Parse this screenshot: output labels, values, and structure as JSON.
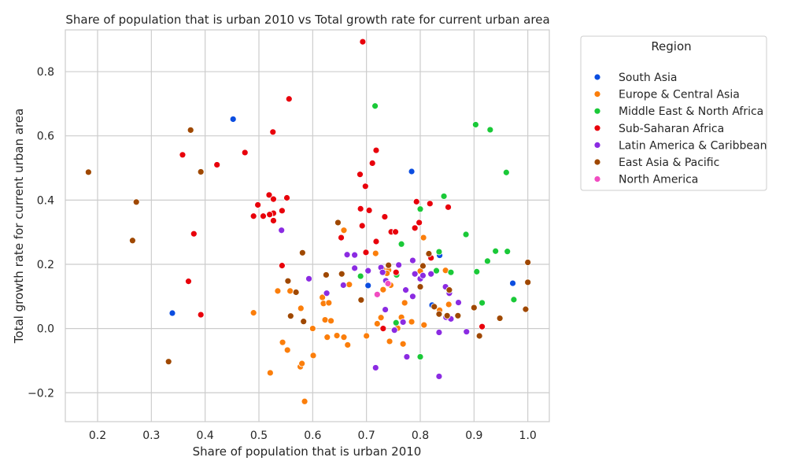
{
  "chart_data": {
    "type": "scatter",
    "title": "Share of population that is urban 2010 vs Total growth rate for current urban area",
    "xlabel": "Share of population that is urban 2010",
    "ylabel": "Total growth rate for current urban area",
    "xlim": [
      0.14,
      1.04
    ],
    "ylim": [
      -0.29,
      0.93
    ],
    "xticks": [
      0.2,
      0.3,
      0.4,
      0.5,
      0.6,
      0.7,
      0.8,
      0.9,
      1.0
    ],
    "xtick_labels": [
      "0.2",
      "0.3",
      "0.4",
      "0.5",
      "0.6",
      "0.7",
      "0.8",
      "0.9",
      "1.0"
    ],
    "yticks": [
      -0.2,
      0.0,
      0.2,
      0.4,
      0.6,
      0.8
    ],
    "ytick_labels": [
      "−0.2",
      "0.0",
      "0.2",
      "0.4",
      "0.6",
      "0.8"
    ],
    "grid": true,
    "legend": {
      "title": "Region",
      "placement": "outside-right"
    },
    "series": [
      {
        "name": "South Asia",
        "color": "#0b4de0",
        "points": [
          [
            0.452,
            0.652
          ],
          [
            0.339,
            0.048
          ],
          [
            0.784,
            0.489
          ],
          [
            0.703,
            0.134
          ],
          [
            0.836,
            0.228
          ],
          [
            0.805,
            0.166
          ],
          [
            0.822,
            0.073
          ],
          [
            0.972,
            0.141
          ]
        ]
      },
      {
        "name": "Europe & Central Asia",
        "color": "#fb7e0b",
        "points": [
          [
            0.49,
            0.049
          ],
          [
            0.521,
            -0.138
          ],
          [
            0.535,
            0.117
          ],
          [
            0.544,
            -0.043
          ],
          [
            0.553,
            -0.067
          ],
          [
            0.558,
            0.117
          ],
          [
            0.577,
            -0.119
          ],
          [
            0.58,
            -0.109
          ],
          [
            0.585,
            -0.227
          ],
          [
            0.578,
            0.063
          ],
          [
            0.6,
            0.0
          ],
          [
            0.601,
            -0.084
          ],
          [
            0.618,
            0.097
          ],
          [
            0.62,
            0.078
          ],
          [
            0.623,
            0.027
          ],
          [
            0.627,
            -0.027
          ],
          [
            0.63,
            0.08
          ],
          [
            0.634,
            0.024
          ],
          [
            0.645,
            -0.022
          ],
          [
            0.658,
            -0.027
          ],
          [
            0.665,
            -0.051
          ],
          [
            0.668,
            0.137
          ],
          [
            0.658,
            0.306
          ],
          [
            0.7,
            -0.023
          ],
          [
            0.717,
            0.234
          ],
          [
            0.72,
            0.015
          ],
          [
            0.727,
            0.034
          ],
          [
            0.731,
            0.121
          ],
          [
            0.741,
            0.182
          ],
          [
            0.743,
            -0.04
          ],
          [
            0.745,
            0.135
          ],
          [
            0.758,
            0.001
          ],
          [
            0.765,
            0.035
          ],
          [
            0.768,
            -0.048
          ],
          [
            0.771,
            0.08
          ],
          [
            0.784,
            0.021
          ],
          [
            0.8,
            0.179
          ],
          [
            0.806,
            0.283
          ],
          [
            0.807,
            0.011
          ],
          [
            0.836,
            0.057
          ],
          [
            0.847,
            0.181
          ],
          [
            0.853,
            0.075
          ],
          [
            0.73,
            0.185
          ],
          [
            0.738,
            0.172
          ]
        ]
      },
      {
        "name": "Middle East & North Africa",
        "color": "#1ac938",
        "points": [
          [
            0.716,
            0.693
          ],
          [
            0.903,
            0.635
          ],
          [
            0.93,
            0.619
          ],
          [
            0.96,
            0.486
          ],
          [
            0.844,
            0.412
          ],
          [
            0.8,
            0.372
          ],
          [
            0.885,
            0.293
          ],
          [
            0.765,
            0.263
          ],
          [
            0.835,
            0.239
          ],
          [
            0.94,
            0.241
          ],
          [
            0.962,
            0.24
          ],
          [
            0.925,
            0.21
          ],
          [
            0.83,
            0.18
          ],
          [
            0.857,
            0.175
          ],
          [
            0.905,
            0.177
          ],
          [
            0.689,
            0.163
          ],
          [
            0.756,
            0.167
          ],
          [
            0.974,
            0.09
          ],
          [
            0.915,
            0.08
          ],
          [
            0.755,
            0.018
          ],
          [
            0.8,
            -0.088
          ]
        ]
      },
      {
        "name": "Sub-Saharan Africa",
        "color": "#e8000b",
        "points": [
          [
            0.693,
            0.893
          ],
          [
            0.556,
            0.715
          ],
          [
            0.526,
            0.612
          ],
          [
            0.358,
            0.541
          ],
          [
            0.474,
            0.548
          ],
          [
            0.422,
            0.51
          ],
          [
            0.718,
            0.555
          ],
          [
            0.711,
            0.515
          ],
          [
            0.688,
            0.48
          ],
          [
            0.698,
            0.443
          ],
          [
            0.519,
            0.416
          ],
          [
            0.552,
            0.407
          ],
          [
            0.527,
            0.403
          ],
          [
            0.793,
            0.395
          ],
          [
            0.818,
            0.389
          ],
          [
            0.852,
            0.378
          ],
          [
            0.498,
            0.385
          ],
          [
            0.543,
            0.367
          ],
          [
            0.705,
            0.368
          ],
          [
            0.689,
            0.373
          ],
          [
            0.527,
            0.359
          ],
          [
            0.52,
            0.355
          ],
          [
            0.49,
            0.35
          ],
          [
            0.508,
            0.35
          ],
          [
            0.734,
            0.348
          ],
          [
            0.527,
            0.336
          ],
          [
            0.798,
            0.33
          ],
          [
            0.692,
            0.32
          ],
          [
            0.79,
            0.313
          ],
          [
            0.746,
            0.301
          ],
          [
            0.754,
            0.301
          ],
          [
            0.379,
            0.295
          ],
          [
            0.653,
            0.283
          ],
          [
            0.718,
            0.271
          ],
          [
            0.699,
            0.237
          ],
          [
            0.82,
            0.22
          ],
          [
            0.543,
            0.196
          ],
          [
            0.755,
            0.175
          ],
          [
            0.369,
            0.147
          ],
          [
            0.392,
            0.043
          ],
          [
            0.915,
            0.006
          ],
          [
            0.731,
            0.0
          ]
        ]
      },
      {
        "name": "Latin America & Caribbean",
        "color": "#8b2be2",
        "points": [
          [
            0.542,
            0.306
          ],
          [
            0.664,
            0.23
          ],
          [
            0.678,
            0.229
          ],
          [
            0.703,
            0.18
          ],
          [
            0.678,
            0.188
          ],
          [
            0.727,
            0.19
          ],
          [
            0.76,
            0.198
          ],
          [
            0.73,
            0.175
          ],
          [
            0.736,
            0.149
          ],
          [
            0.79,
            0.17
          ],
          [
            0.786,
            0.212
          ],
          [
            0.8,
            0.155
          ],
          [
            0.82,
            0.17
          ],
          [
            0.593,
            0.155
          ],
          [
            0.657,
            0.135
          ],
          [
            0.626,
            0.11
          ],
          [
            0.735,
            0.059
          ],
          [
            0.773,
            0.12
          ],
          [
            0.786,
            0.1
          ],
          [
            0.805,
            0.165
          ],
          [
            0.847,
            0.13
          ],
          [
            0.854,
            0.11
          ],
          [
            0.871,
            0.081
          ],
          [
            0.848,
            0.035
          ],
          [
            0.857,
            0.03
          ],
          [
            0.768,
            0.02
          ],
          [
            0.752,
            -0.005
          ],
          [
            0.835,
            -0.012
          ],
          [
            0.886,
            -0.01
          ],
          [
            0.775,
            -0.088
          ],
          [
            0.717,
            -0.122
          ],
          [
            0.835,
            -0.149
          ]
        ]
      },
      {
        "name": "East Asia & Pacific",
        "color": "#9f4800",
        "points": [
          [
            0.373,
            0.618
          ],
          [
            0.183,
            0.487
          ],
          [
            0.392,
            0.488
          ],
          [
            0.272,
            0.394
          ],
          [
            0.265,
            0.274
          ],
          [
            0.647,
            0.33
          ],
          [
            0.581,
            0.236
          ],
          [
            0.625,
            0.167
          ],
          [
            0.654,
            0.17
          ],
          [
            0.554,
            0.148
          ],
          [
            0.569,
            0.113
          ],
          [
            0.559,
            0.039
          ],
          [
            0.583,
            0.022
          ],
          [
            0.69,
            0.089
          ],
          [
            0.741,
            0.197
          ],
          [
            0.805,
            0.195
          ],
          [
            0.816,
            0.233
          ],
          [
            0.826,
            0.068
          ],
          [
            0.835,
            0.045
          ],
          [
            0.854,
            0.12
          ],
          [
            0.85,
            0.04
          ],
          [
            0.87,
            0.04
          ],
          [
            0.9,
            0.065
          ],
          [
            0.91,
            -0.023
          ],
          [
            0.948,
            0.032
          ],
          [
            1.0,
            0.206
          ],
          [
            1.0,
            0.144
          ],
          [
            0.996,
            0.06
          ],
          [
            0.332,
            -0.103
          ],
          [
            0.8,
            0.13
          ]
        ]
      },
      {
        "name": "North America",
        "color": "#f14cc1",
        "points": [
          [
            0.72,
            0.106
          ],
          [
            0.74,
            0.14
          ]
        ]
      }
    ]
  }
}
